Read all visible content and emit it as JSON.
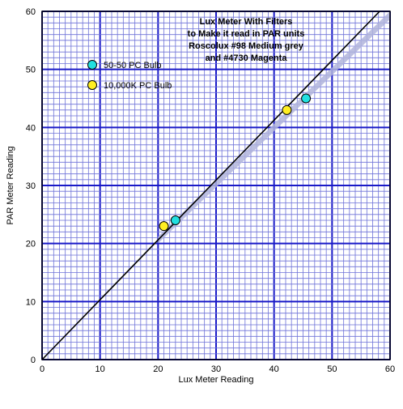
{
  "chart_data": {
    "type": "scatter",
    "title_lines": [
      "Lux Meter With Filters",
      "to Make it read in PAR units",
      "Roscolux #98 Medium grey",
      "and #4730 Magenta"
    ],
    "xlabel": "Lux Meter Reading",
    "ylabel": "PAR Meter Reading",
    "xlim": [
      0,
      60
    ],
    "ylim": [
      0,
      60
    ],
    "x_ticks": [
      0,
      10,
      20,
      30,
      40,
      50,
      60
    ],
    "y_ticks": [
      0,
      10,
      20,
      30,
      40,
      50,
      60
    ],
    "grid": true,
    "legend_position": "top-left",
    "series": [
      {
        "name": "50-50 PC Bulb",
        "color": "#22e0e0",
        "points": [
          {
            "x": 23,
            "y": 24
          },
          {
            "x": 45.5,
            "y": 45
          }
        ]
      },
      {
        "name": "10,000K PC Bulb",
        "color": "#ffee22",
        "points": [
          {
            "x": 21,
            "y": 23
          },
          {
            "x": 42.2,
            "y": 43
          }
        ]
      }
    ],
    "fit_line": {
      "x": [
        0,
        58.2
      ],
      "y": [
        0,
        60
      ]
    },
    "confidence_band_color": "#b0b4dc",
    "grid_minor_color": "#6e72d8",
    "grid_major_color": "#1a1ac8"
  }
}
